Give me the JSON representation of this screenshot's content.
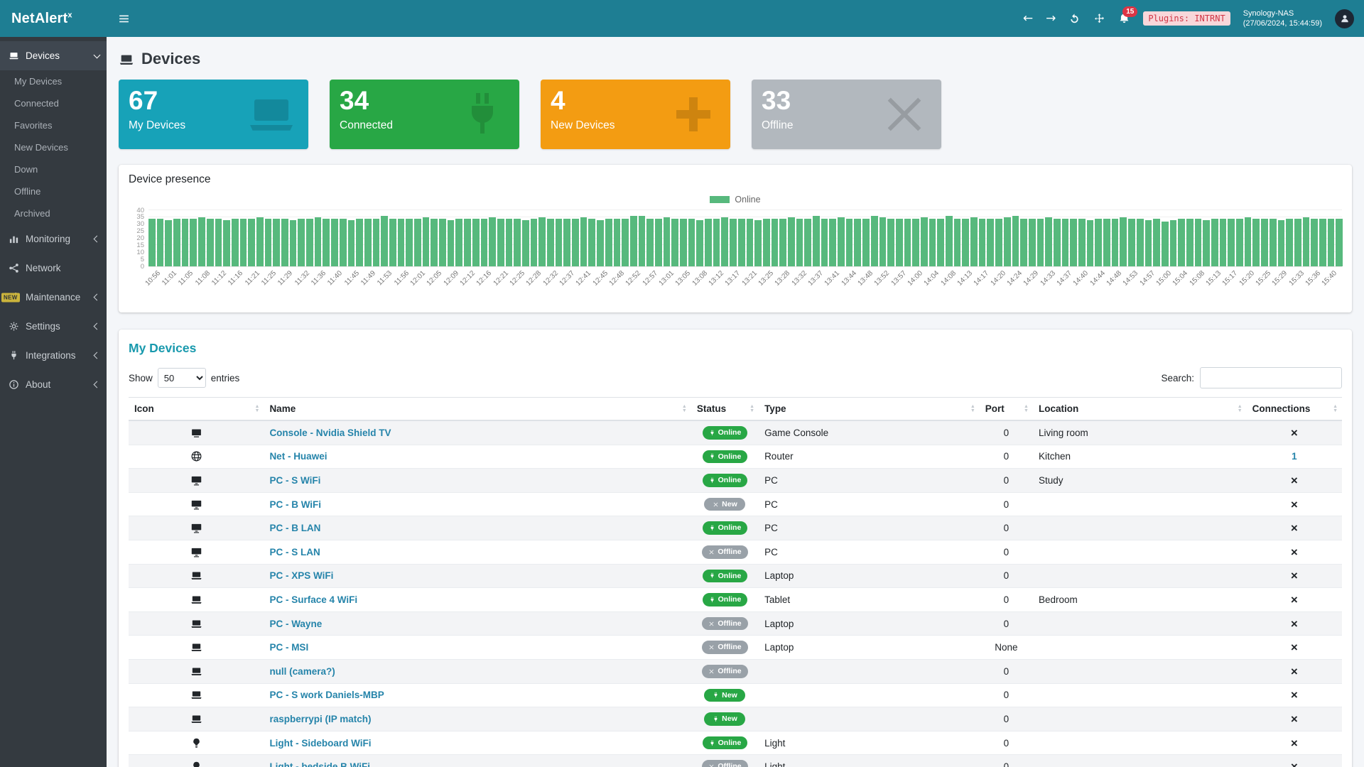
{
  "header": {
    "brand_prefix": "NetAlert",
    "brand_suffix": "x",
    "icons": [
      "bars",
      "arrow-left",
      "arrow-right",
      "refresh",
      "move",
      "bell"
    ],
    "notification_count": "15",
    "plugins_badge": "Plugins: INTRNT",
    "nas_name": "Synology-NAS",
    "nas_time": "(27/06/2024, 15:44:59)"
  },
  "sidebar": {
    "items": [
      {
        "label": "Devices",
        "icon": "laptop",
        "active": true,
        "chevron": "down",
        "children": [
          "My Devices",
          "Connected",
          "Favorites",
          "New Devices",
          "Down",
          "Offline",
          "Archived"
        ]
      },
      {
        "label": "Monitoring",
        "icon": "chart",
        "chevron": "left"
      },
      {
        "label": "Network",
        "icon": "network"
      },
      {
        "label": "Maintenance",
        "icon": "tools",
        "chevron": "left",
        "badge": "NEW"
      },
      {
        "label": "Settings",
        "icon": "gear",
        "chevron": "left"
      },
      {
        "label": "Integrations",
        "icon": "plug",
        "chevron": "left"
      },
      {
        "label": "About",
        "icon": "info",
        "chevron": "left"
      }
    ]
  },
  "page": {
    "title": "Devices"
  },
  "summary_cards": [
    {
      "value": "67",
      "label": "My Devices",
      "color": "#17a2b8",
      "icon": "laptop"
    },
    {
      "value": "34",
      "label": "Connected",
      "color": "#28a745",
      "icon": "plug"
    },
    {
      "value": "4",
      "label": "New Devices",
      "color": "#f39c12",
      "icon": "plus"
    },
    {
      "value": "33",
      "label": "Offline",
      "color": "#b2b8be",
      "icon": "x"
    }
  ],
  "presence": {
    "title": "Device presence",
    "legend": "Online",
    "chart_data": {
      "type": "bar",
      "title": "Device presence",
      "legend": [
        "Online"
      ],
      "legend_position": "top-center",
      "series_color": "#57b97d",
      "grid": true,
      "ylim": [
        0,
        40
      ],
      "yticks": [
        0,
        5,
        10,
        15,
        20,
        25,
        30,
        35,
        40
      ],
      "x_tick_labels": [
        "10:56",
        "11:01",
        "11:05",
        "11:08",
        "11:12",
        "11:16",
        "11:21",
        "11:25",
        "11:29",
        "11:32",
        "11:36",
        "11:40",
        "11:45",
        "11:49",
        "11:53",
        "11:56",
        "12:01",
        "12:05",
        "12:09",
        "12:12",
        "12:16",
        "12:21",
        "12:25",
        "12:28",
        "12:32",
        "12:37",
        "12:41",
        "12:45",
        "12:48",
        "12:52",
        "12:57",
        "13:01",
        "13:05",
        "13:08",
        "13:12",
        "13:17",
        "13:21",
        "13:25",
        "13:28",
        "13:32",
        "13:37",
        "13:41",
        "13:44",
        "13:48",
        "13:52",
        "13:57",
        "14:00",
        "14:04",
        "14:08",
        "14:13",
        "14:17",
        "14:20",
        "14:24",
        "14:29",
        "14:33",
        "14:37",
        "14:40",
        "14:44",
        "14:48",
        "14:53",
        "14:57",
        "15:00",
        "15:04",
        "15:08",
        "15:13",
        "15:17",
        "15:20",
        "15:25",
        "15:29",
        "15:33",
        "15:36",
        "15:40"
      ],
      "values": [
        34,
        34,
        33,
        34,
        34,
        34,
        35,
        34,
        34,
        33,
        34,
        34,
        34,
        35,
        34,
        34,
        34,
        33,
        34,
        34,
        35,
        34,
        34,
        34,
        33,
        34,
        34,
        34,
        36,
        34,
        34,
        34,
        34,
        35,
        34,
        34,
        33,
        34,
        34,
        34,
        34,
        35,
        34,
        34,
        34,
        33,
        34,
        35,
        34,
        34,
        34,
        34,
        35,
        34,
        33,
        34,
        34,
        34,
        36,
        36,
        34,
        34,
        35,
        34,
        34,
        34,
        33,
        34,
        34,
        35,
        34,
        34,
        34,
        33,
        34,
        34,
        34,
        35,
        34,
        34,
        36,
        34,
        34,
        35,
        34,
        34,
        34,
        36,
        35,
        34,
        34,
        34,
        34,
        35,
        34,
        34,
        36,
        34,
        34,
        35,
        34,
        34,
        34,
        35,
        36,
        34,
        34,
        34,
        35,
        34,
        34,
        34,
        34,
        33,
        34,
        34,
        34,
        35,
        34,
        34,
        33,
        34,
        32,
        33,
        34,
        34,
        34,
        33,
        34,
        34,
        34,
        34,
        35,
        34,
        34,
        34,
        33,
        34,
        34,
        35,
        34,
        34,
        34,
        34
      ]
    }
  },
  "devices_table": {
    "title": "My Devices",
    "show_label": "Show",
    "page_size": "50",
    "entries_label": "entries",
    "search_label": "Search:",
    "columns": [
      "Icon",
      "Name",
      "Status",
      "Type",
      "Port",
      "Location",
      "Connections"
    ],
    "rows": [
      {
        "icon": "tv",
        "name": "Console - Nvidia Shield TV",
        "status": "Online",
        "kind": "online",
        "type": "Game Console",
        "port": "0",
        "location": "Living room",
        "connections": "×"
      },
      {
        "icon": "globe",
        "name": "Net - Huawei",
        "status": "Online",
        "kind": "online",
        "type": "Router",
        "port": "0",
        "location": "Kitchen",
        "connections": "1"
      },
      {
        "icon": "desktop",
        "name": "PC - S WiFi",
        "status": "Online",
        "kind": "online",
        "type": "PC",
        "port": "0",
        "location": "Study",
        "connections": "×"
      },
      {
        "icon": "desktop",
        "name": "PC - B WiFi",
        "status": "New",
        "kind": "new-off",
        "type": "PC",
        "port": "0",
        "location": "",
        "connections": "×"
      },
      {
        "icon": "desktop",
        "name": "PC - B LAN",
        "status": "Online",
        "kind": "online",
        "type": "PC",
        "port": "0",
        "location": "",
        "connections": "×"
      },
      {
        "icon": "desktop",
        "name": "PC - S LAN",
        "status": "Offline",
        "kind": "offline",
        "type": "PC",
        "port": "0",
        "location": "",
        "connections": "×"
      },
      {
        "icon": "laptop",
        "name": "PC - XPS WiFi",
        "status": "Online",
        "kind": "online",
        "type": "Laptop",
        "port": "0",
        "location": "",
        "connections": "×"
      },
      {
        "icon": "laptop",
        "name": "PC - Surface 4 WiFi",
        "status": "Online",
        "kind": "online",
        "type": "Tablet",
        "port": "0",
        "location": "Bedroom",
        "connections": "×"
      },
      {
        "icon": "laptop",
        "name": "PC - Wayne",
        "status": "Offline",
        "kind": "offline",
        "type": "Laptop",
        "port": "0",
        "location": "",
        "connections": "×"
      },
      {
        "icon": "laptop",
        "name": "PC - MSI",
        "status": "Offline",
        "kind": "offline",
        "type": "Laptop",
        "port": "None",
        "location": "",
        "connections": "×"
      },
      {
        "icon": "laptop",
        "name": "null (camera?)",
        "status": "Offline",
        "kind": "offline",
        "type": "",
        "port": "0",
        "location": "",
        "connections": "×"
      },
      {
        "icon": "laptop",
        "name": "PC - S work Daniels-MBP",
        "status": "New",
        "kind": "new-on",
        "type": "",
        "port": "0",
        "location": "",
        "connections": "×"
      },
      {
        "icon": "laptop",
        "name": "raspberrypi (IP match)",
        "status": "New",
        "kind": "new-on",
        "type": "",
        "port": "0",
        "location": "",
        "connections": "×"
      },
      {
        "icon": "bulb",
        "name": "Light - Sideboard WiFi",
        "status": "Online",
        "kind": "online",
        "type": "Light",
        "port": "0",
        "location": "",
        "connections": "×"
      },
      {
        "icon": "bulb",
        "name": "Light - bedside B WiFi",
        "status": "Offline",
        "kind": "offline",
        "type": "Light",
        "port": "0",
        "location": "",
        "connections": "×"
      }
    ]
  }
}
